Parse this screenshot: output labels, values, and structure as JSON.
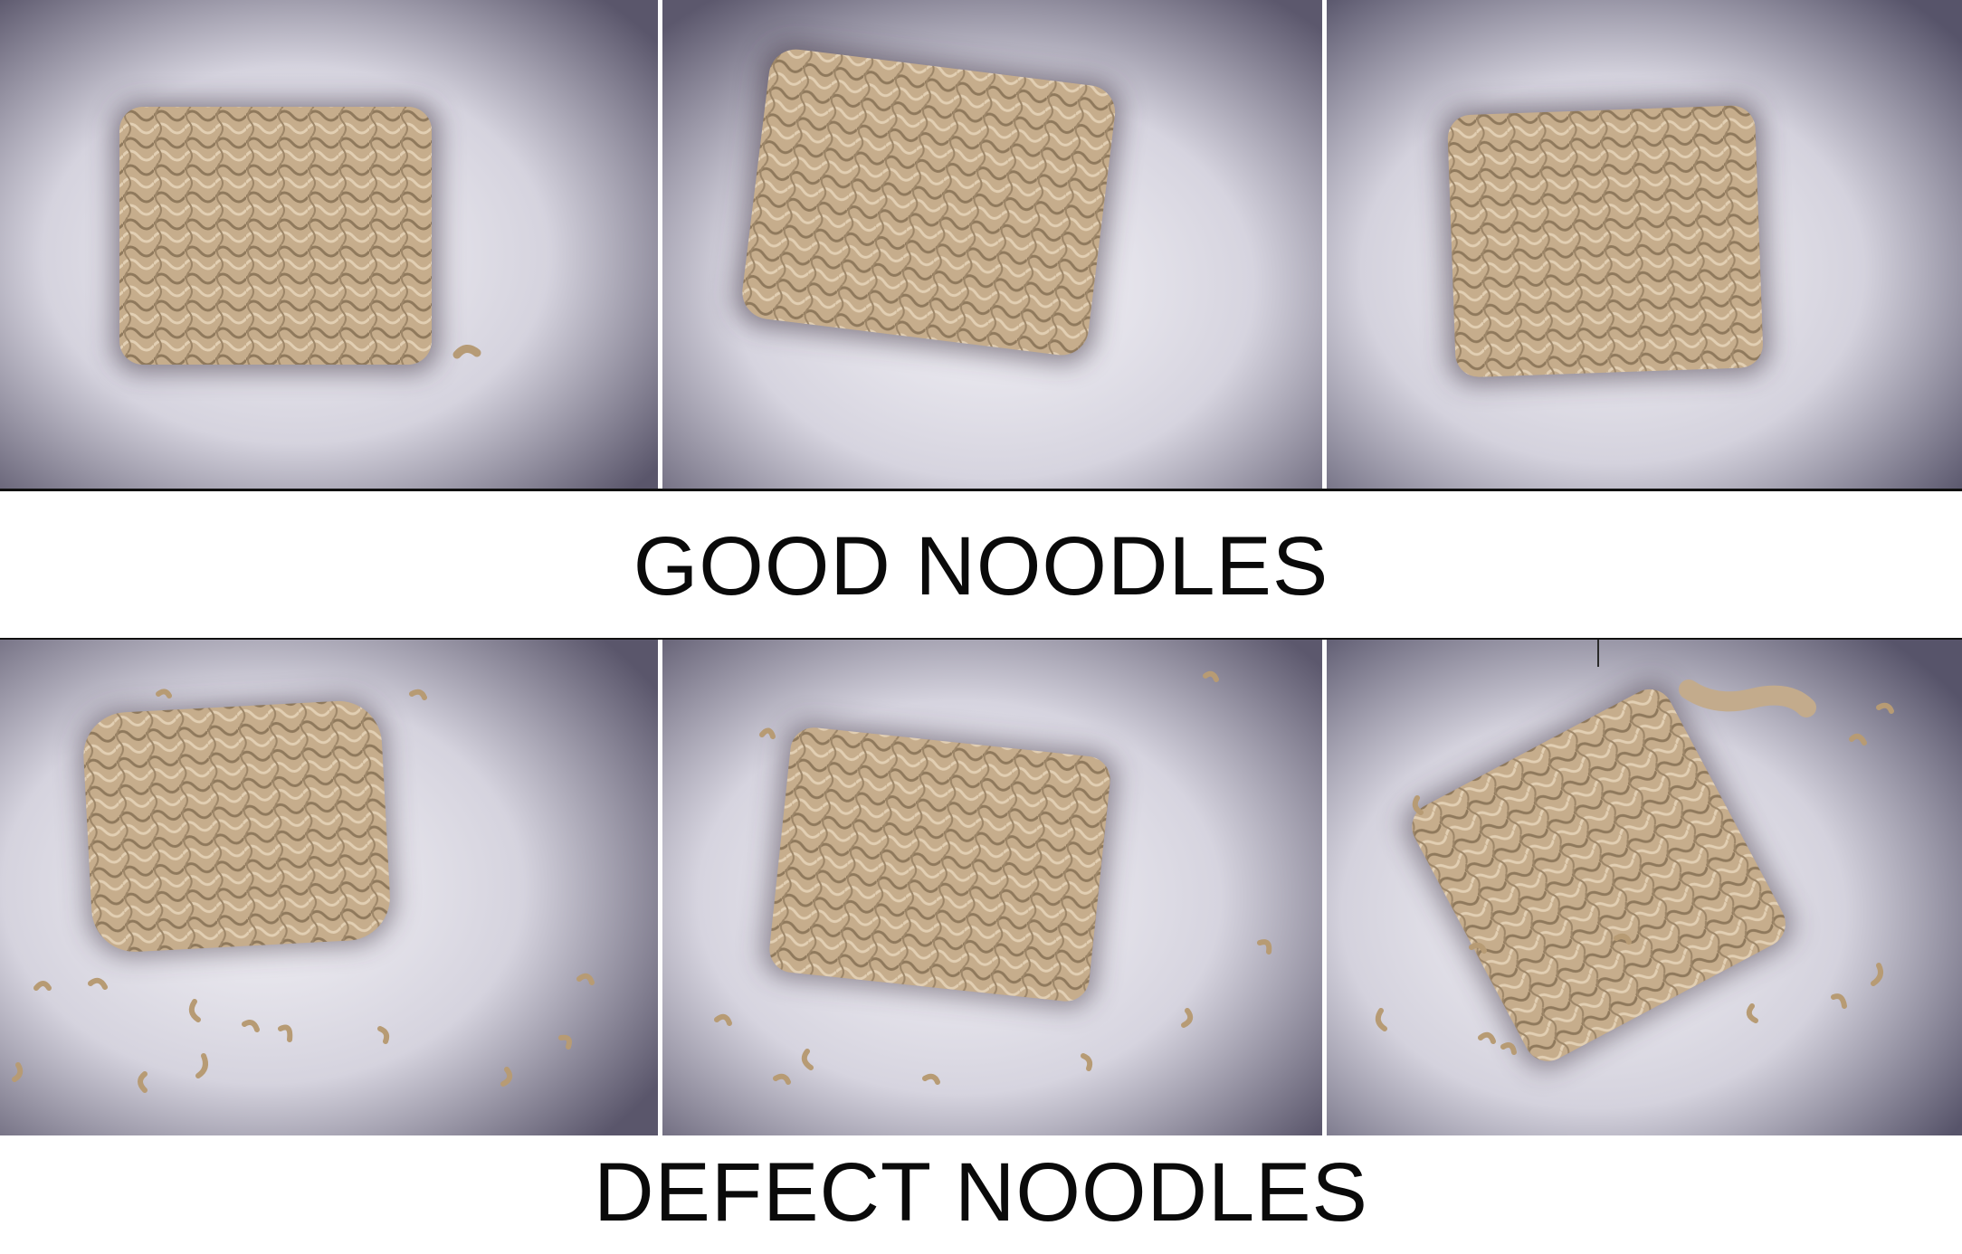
{
  "captions": {
    "good": "GOOD NOODLES",
    "defect": "DEFECT NOODLES"
  },
  "colors": {
    "noodle": "#c3ab8c",
    "noodle_dark": "#8f7a5e",
    "background_light": "#efeef3",
    "background_dark": "#57546a",
    "frame": "#101010"
  }
}
